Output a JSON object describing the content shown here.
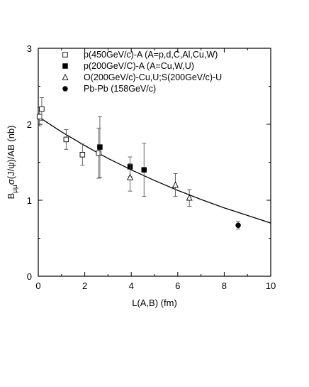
{
  "chart_data": {
    "type": "scatter",
    "title": "",
    "xlabel": "L(A,B) (fm)",
    "ylabel": "B_μμ σ(J/ψ)/AB (nb)",
    "ylabel_base": "B",
    "ylabel_sub": "μμ",
    "ylabel_rest": "σ(J/ψ)/AB (nb)",
    "xlim": [
      0,
      10
    ],
    "ylim": [
      0,
      3
    ],
    "xticks": [
      0,
      2,
      4,
      6,
      8,
      10
    ],
    "yticks": [
      0,
      1,
      2,
      3
    ],
    "grid": false,
    "legend_position": "top-right",
    "series": [
      {
        "name": "p(450GeV/c)-A (A=p,d,C,Al,Cu,W)",
        "marker": "open-square",
        "points": [
          {
            "x": 0.05,
            "y": 2.1,
            "err": 0.12
          },
          {
            "x": 0.15,
            "y": 2.2,
            "err": 0.15
          },
          {
            "x": 1.2,
            "y": 1.8,
            "err": 0.13
          },
          {
            "x": 1.9,
            "y": 1.6,
            "err": 0.14
          },
          {
            "x": 2.6,
            "y": 1.62,
            "err": 0.33
          }
        ]
      },
      {
        "name": "p(200GeV/C)-A (A=Cu,W,U)",
        "marker": "filled-square",
        "points": [
          {
            "x": 2.65,
            "y": 1.7,
            "err": 0.4
          },
          {
            "x": 3.95,
            "y": 1.44,
            "err": 0.13
          },
          {
            "x": 4.55,
            "y": 1.4,
            "err": 0.35
          }
        ]
      },
      {
        "name": "O(200GeV/c)-Cu,U;S(200GeV/c)-U",
        "marker": "open-triangle",
        "points": [
          {
            "x": 3.95,
            "y": 1.3,
            "err": 0.18
          },
          {
            "x": 5.9,
            "y": 1.2,
            "err": 0.15
          },
          {
            "x": 6.5,
            "y": 1.03,
            "err": 0.11
          }
        ]
      },
      {
        "name": "Pb-Pb (158GeV/c)",
        "marker": "filled-circle",
        "points": [
          {
            "x": 8.6,
            "y": 0.67,
            "err": 0.05
          }
        ]
      }
    ],
    "fit_curve": {
      "x": [
        0,
        1,
        2,
        3,
        4,
        5,
        6,
        7,
        8,
        9,
        10
      ],
      "y": [
        2.1,
        1.9,
        1.72,
        1.55,
        1.4,
        1.26,
        1.13,
        1.01,
        0.9,
        0.8,
        0.7
      ]
    }
  }
}
